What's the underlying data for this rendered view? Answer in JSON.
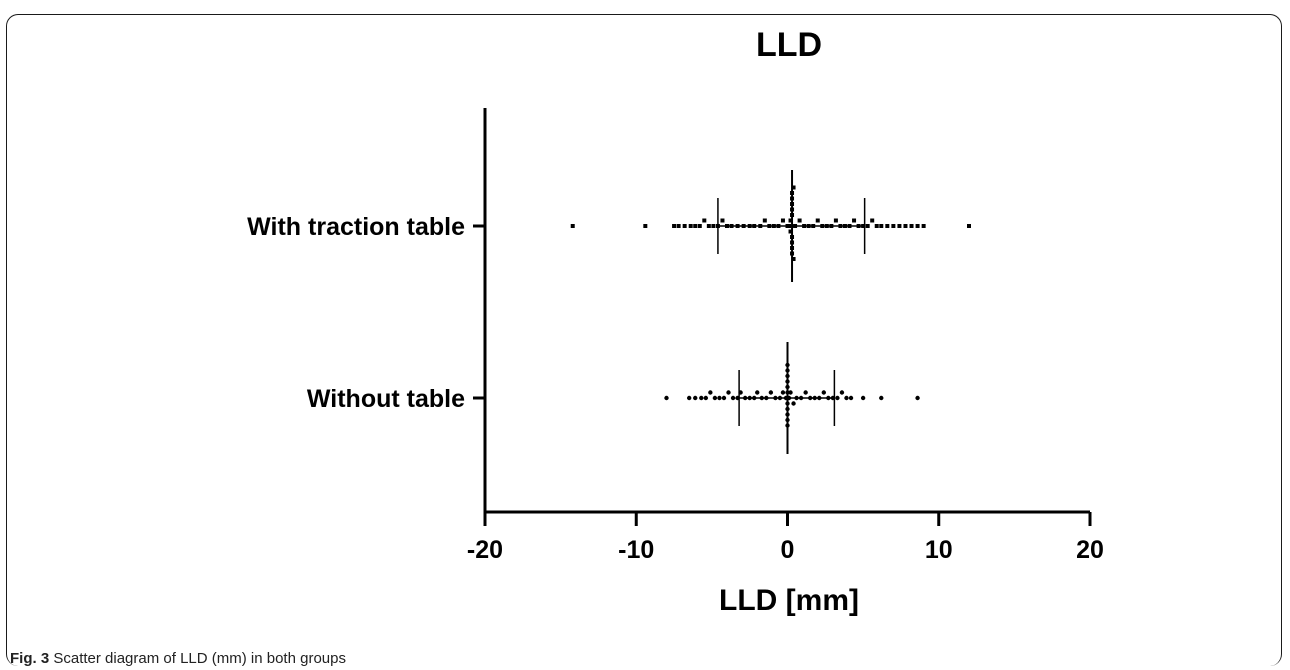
{
  "figure": {
    "label": "Fig. 3",
    "caption": "Scatter diagram of LLD (mm) in both groups"
  },
  "chart_data": {
    "type": "scatter",
    "title": "LLD",
    "xlabel": "LLD [mm]",
    "ylabel": "",
    "orientation": "horizontal",
    "xlim": [
      -20,
      20
    ],
    "xticks": [
      -20,
      -10,
      0,
      10,
      20
    ],
    "grid": false,
    "categories": [
      "With traction table",
      "Without table"
    ],
    "series": [
      {
        "category": "With traction table",
        "marker": "square",
        "mean": 0.3,
        "sd_lower": -4.6,
        "sd_upper": 5.1,
        "values": [
          -14.2,
          -9.4,
          -7.5,
          -7.2,
          -6.8,
          -6.4,
          -6.1,
          -5.8,
          -5.5,
          -5.2,
          -4.9,
          -4.6,
          -4.3,
          -4.0,
          -3.7,
          -3.3,
          -2.9,
          -2.5,
          -2.2,
          -1.8,
          -1.5,
          -1.2,
          -0.9,
          -0.6,
          -0.3,
          0.0,
          0.1,
          0.2,
          0.2,
          0.3,
          0.3,
          0.3,
          0.3,
          0.3,
          0.3,
          0.3,
          0.3,
          0.3,
          0.4,
          0.4,
          0.5,
          0.8,
          1.1,
          1.4,
          1.7,
          2.0,
          2.3,
          2.6,
          2.9,
          3.2,
          3.5,
          3.8,
          4.1,
          4.4,
          4.7,
          5.0,
          5.3,
          5.6,
          5.9,
          6.2,
          6.6,
          7.0,
          7.4,
          7.8,
          8.2,
          8.6,
          9.0,
          12.0
        ]
      },
      {
        "category": "Without table",
        "marker": "circle",
        "mean": 0.0,
        "sd_lower": -3.2,
        "sd_upper": 3.1,
        "values": [
          -8.0,
          -6.5,
          -6.1,
          -5.7,
          -5.4,
          -5.1,
          -4.8,
          -4.5,
          -4.2,
          -3.9,
          -3.6,
          -3.3,
          -3.1,
          -2.8,
          -2.5,
          -2.2,
          -2.0,
          -1.7,
          -1.4,
          -1.1,
          -0.8,
          -0.5,
          -0.3,
          -0.1,
          0.0,
          0.0,
          0.0,
          0.0,
          0.0,
          0.0,
          0.0,
          0.0,
          0.0,
          0.0,
          0.0,
          0.1,
          0.2,
          0.4,
          0.6,
          0.9,
          1.2,
          1.5,
          1.8,
          2.1,
          2.4,
          2.7,
          3.0,
          3.3,
          3.6,
          3.9,
          4.2,
          5.0,
          6.2,
          8.6
        ]
      }
    ]
  }
}
